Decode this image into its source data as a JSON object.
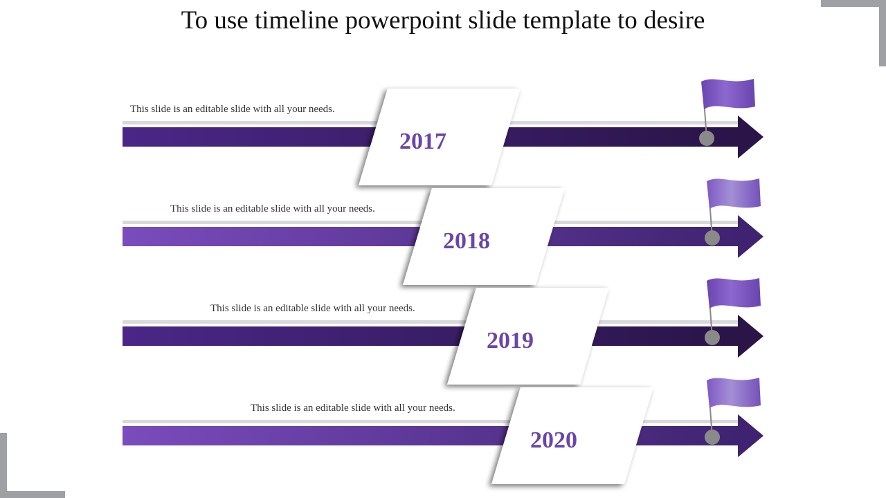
{
  "slide": {
    "title": "To use timeline powerpoint slide template to desire"
  },
  "colors": {
    "purple_dark": "#2e1650",
    "purple_mid": "#4e2a84",
    "purple_light": "#7b4fbd",
    "flag_light": "#a58fd6",
    "year_text": "#6a45a8",
    "track_gray": "#d7d9dc",
    "knob_gray": "#8a8a8a",
    "corner_gray": "#9ea0a3"
  },
  "milestones": [
    {
      "year": "2017",
      "caption": "This slide is an editable slide with all your needs."
    },
    {
      "year": "2018",
      "caption": "This slide is an editable slide with all your needs."
    },
    {
      "year": "2019",
      "caption": "This slide is an editable slide with all your needs."
    },
    {
      "year": "2020",
      "caption": "This slide is an editable slide with all your needs."
    }
  ]
}
